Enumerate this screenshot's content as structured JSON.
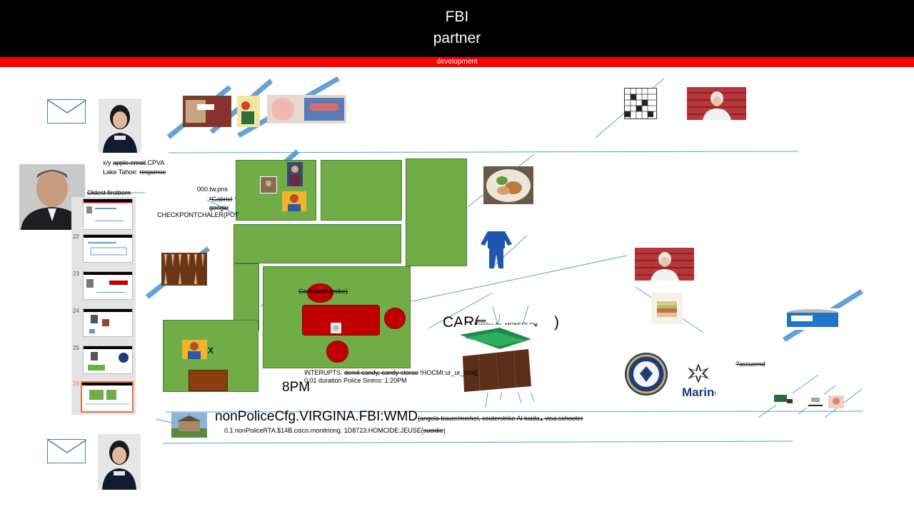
{
  "header": {
    "title_line1": "FBI",
    "title_line2": "partner",
    "subtitle": "development"
  },
  "labels": {
    "xy_prefix": "x/y ",
    "xy_struck": "apple.email",
    "xy_suffix": ".CPVA",
    "lake_prefix": "Lake Tahoe: ",
    "lake_struck": "response",
    "oldest": "Oldest firstborn",
    "tw_pns": "000.tw.pns",
    "gabriel": "*Gabriel",
    "google": "google",
    "checkpoint": "CHECKPONTCHALER(POT",
    "gorbachev": "Gorbachev(mike)",
    "car_prefix": "CAR(",
    "car_small_top": "ess",
    "car_small": "Bomiler Ae. MONFOLOY",
    "car_suffix": ")",
    "x_mark": "x",
    "interrupts_prefix": "INTERUPTS: ",
    "interrupts_struck": "demil candy, candy storae",
    "interrupts_suffix": " !HOCMI:ur_ur_omi[]",
    "duration": "0.01 duration Police Sirens: 1:20PM",
    "time_8pm": "8PM",
    "assumed": "?assuemd",
    "marine": "Marine",
    "wmd_main": "nonPoliceCfg.VIRGINA.FBI:WMD",
    "wmd_paren": "(angela bauer/merkel, couterstrike Al kaida",
    "wmd_dot": ".",
    "wmd_tail": " visa.schooter",
    "rta_prefix": "0.1 nonPoliceRTA.$14B.cisco.monitriong. 1D8723.HOMCIDE:JEUSE(",
    "rta_struck": "sucidie",
    "rta_suffix": ")"
  },
  "slides": [
    {
      "number": ""
    },
    {
      "number": "22"
    },
    {
      "number": "23"
    },
    {
      "number": "24"
    },
    {
      "number": "25"
    },
    {
      "number": "26"
    }
  ],
  "colors": {
    "header_bg": "#000000",
    "subbar": "#ff0000",
    "room_green": "#70ad47",
    "table_red": "#c00000",
    "line_blue": "#5b9bd5",
    "active_slide": "#e8704a"
  },
  "icons": [
    "envelope-icon",
    "pajamas-icon",
    "crossword-icon",
    "navy-seal-icon",
    "iron-cross-icon"
  ]
}
